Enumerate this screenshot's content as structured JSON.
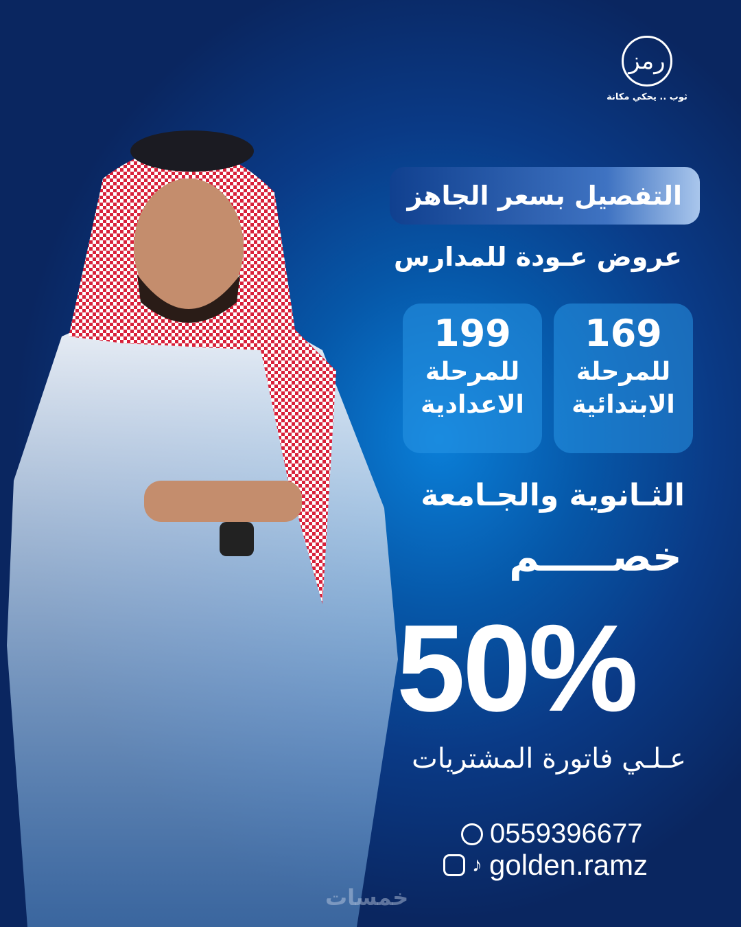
{
  "brand": {
    "logo_text": "رمز",
    "tagline": "ثوب .. يحكي مكانة"
  },
  "headline": "التفصيل بسعر الجاهز",
  "subheadline": "عروض عـودة للمدارس",
  "offers": [
    {
      "price": "169",
      "label_1": "للمرحلة",
      "label_2": "الابتدائية"
    },
    {
      "price": "199",
      "label_1": "للمرحلة",
      "label_2": "الاعدادية"
    }
  ],
  "secondary_line": "الثـانوية والجـامعة",
  "discount_word": "خصـــــم",
  "discount_value": "50%",
  "discount_note": "عـلـي فاتورة المشتريات",
  "contact": {
    "phone": "0559396677",
    "handle": "golden.ramz",
    "icons": [
      "whatsapp-icon",
      "instagram-icon",
      "tiktok-icon"
    ]
  },
  "watermark": "خمسات",
  "colors": {
    "background": "#0a3a86",
    "accent": "#0a7fd8",
    "text": "#ffffff"
  }
}
